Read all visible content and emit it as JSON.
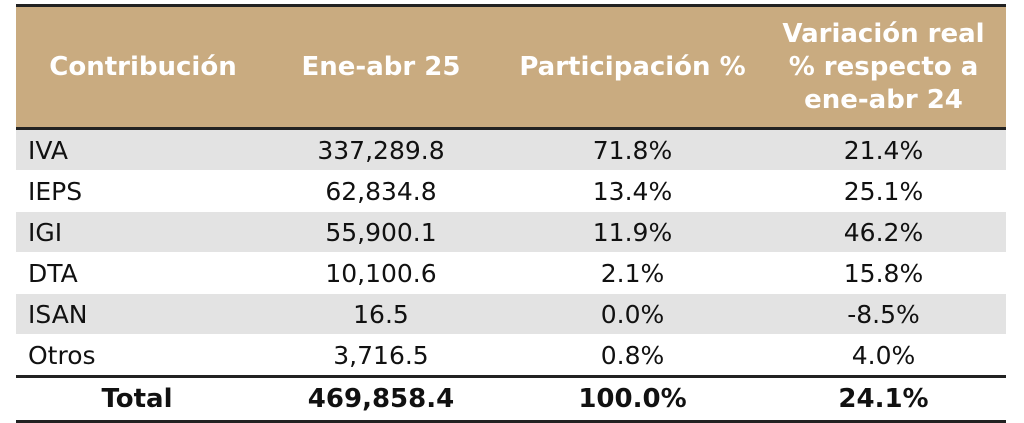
{
  "table": {
    "headers": [
      "Contribución",
      "Ene-abr 25",
      "Participación %",
      "Variación real % respecto a ene-abr 24"
    ],
    "rows": [
      [
        "IVA",
        "337,289.8",
        "71.8%",
        "21.4%"
      ],
      [
        "IEPS",
        "62,834.8",
        "13.4%",
        "25.1%"
      ],
      [
        "IGI",
        "55,900.1",
        "11.9%",
        "46.2%"
      ],
      [
        "DTA",
        "10,100.6",
        "2.1%",
        "15.8%"
      ],
      [
        "ISAN",
        "16.5",
        "0.0%",
        "-8.5%"
      ],
      [
        "Otros",
        "3,716.5",
        "0.8%",
        "4.0%"
      ]
    ],
    "total": [
      "Total",
      "469,858.4",
      "100.0%",
      "24.1%"
    ]
  },
  "colors": {
    "header_background": "#c9ab80",
    "header_text": "#ffffff",
    "stripe": "#e3e3e3",
    "rule": "#222222"
  }
}
